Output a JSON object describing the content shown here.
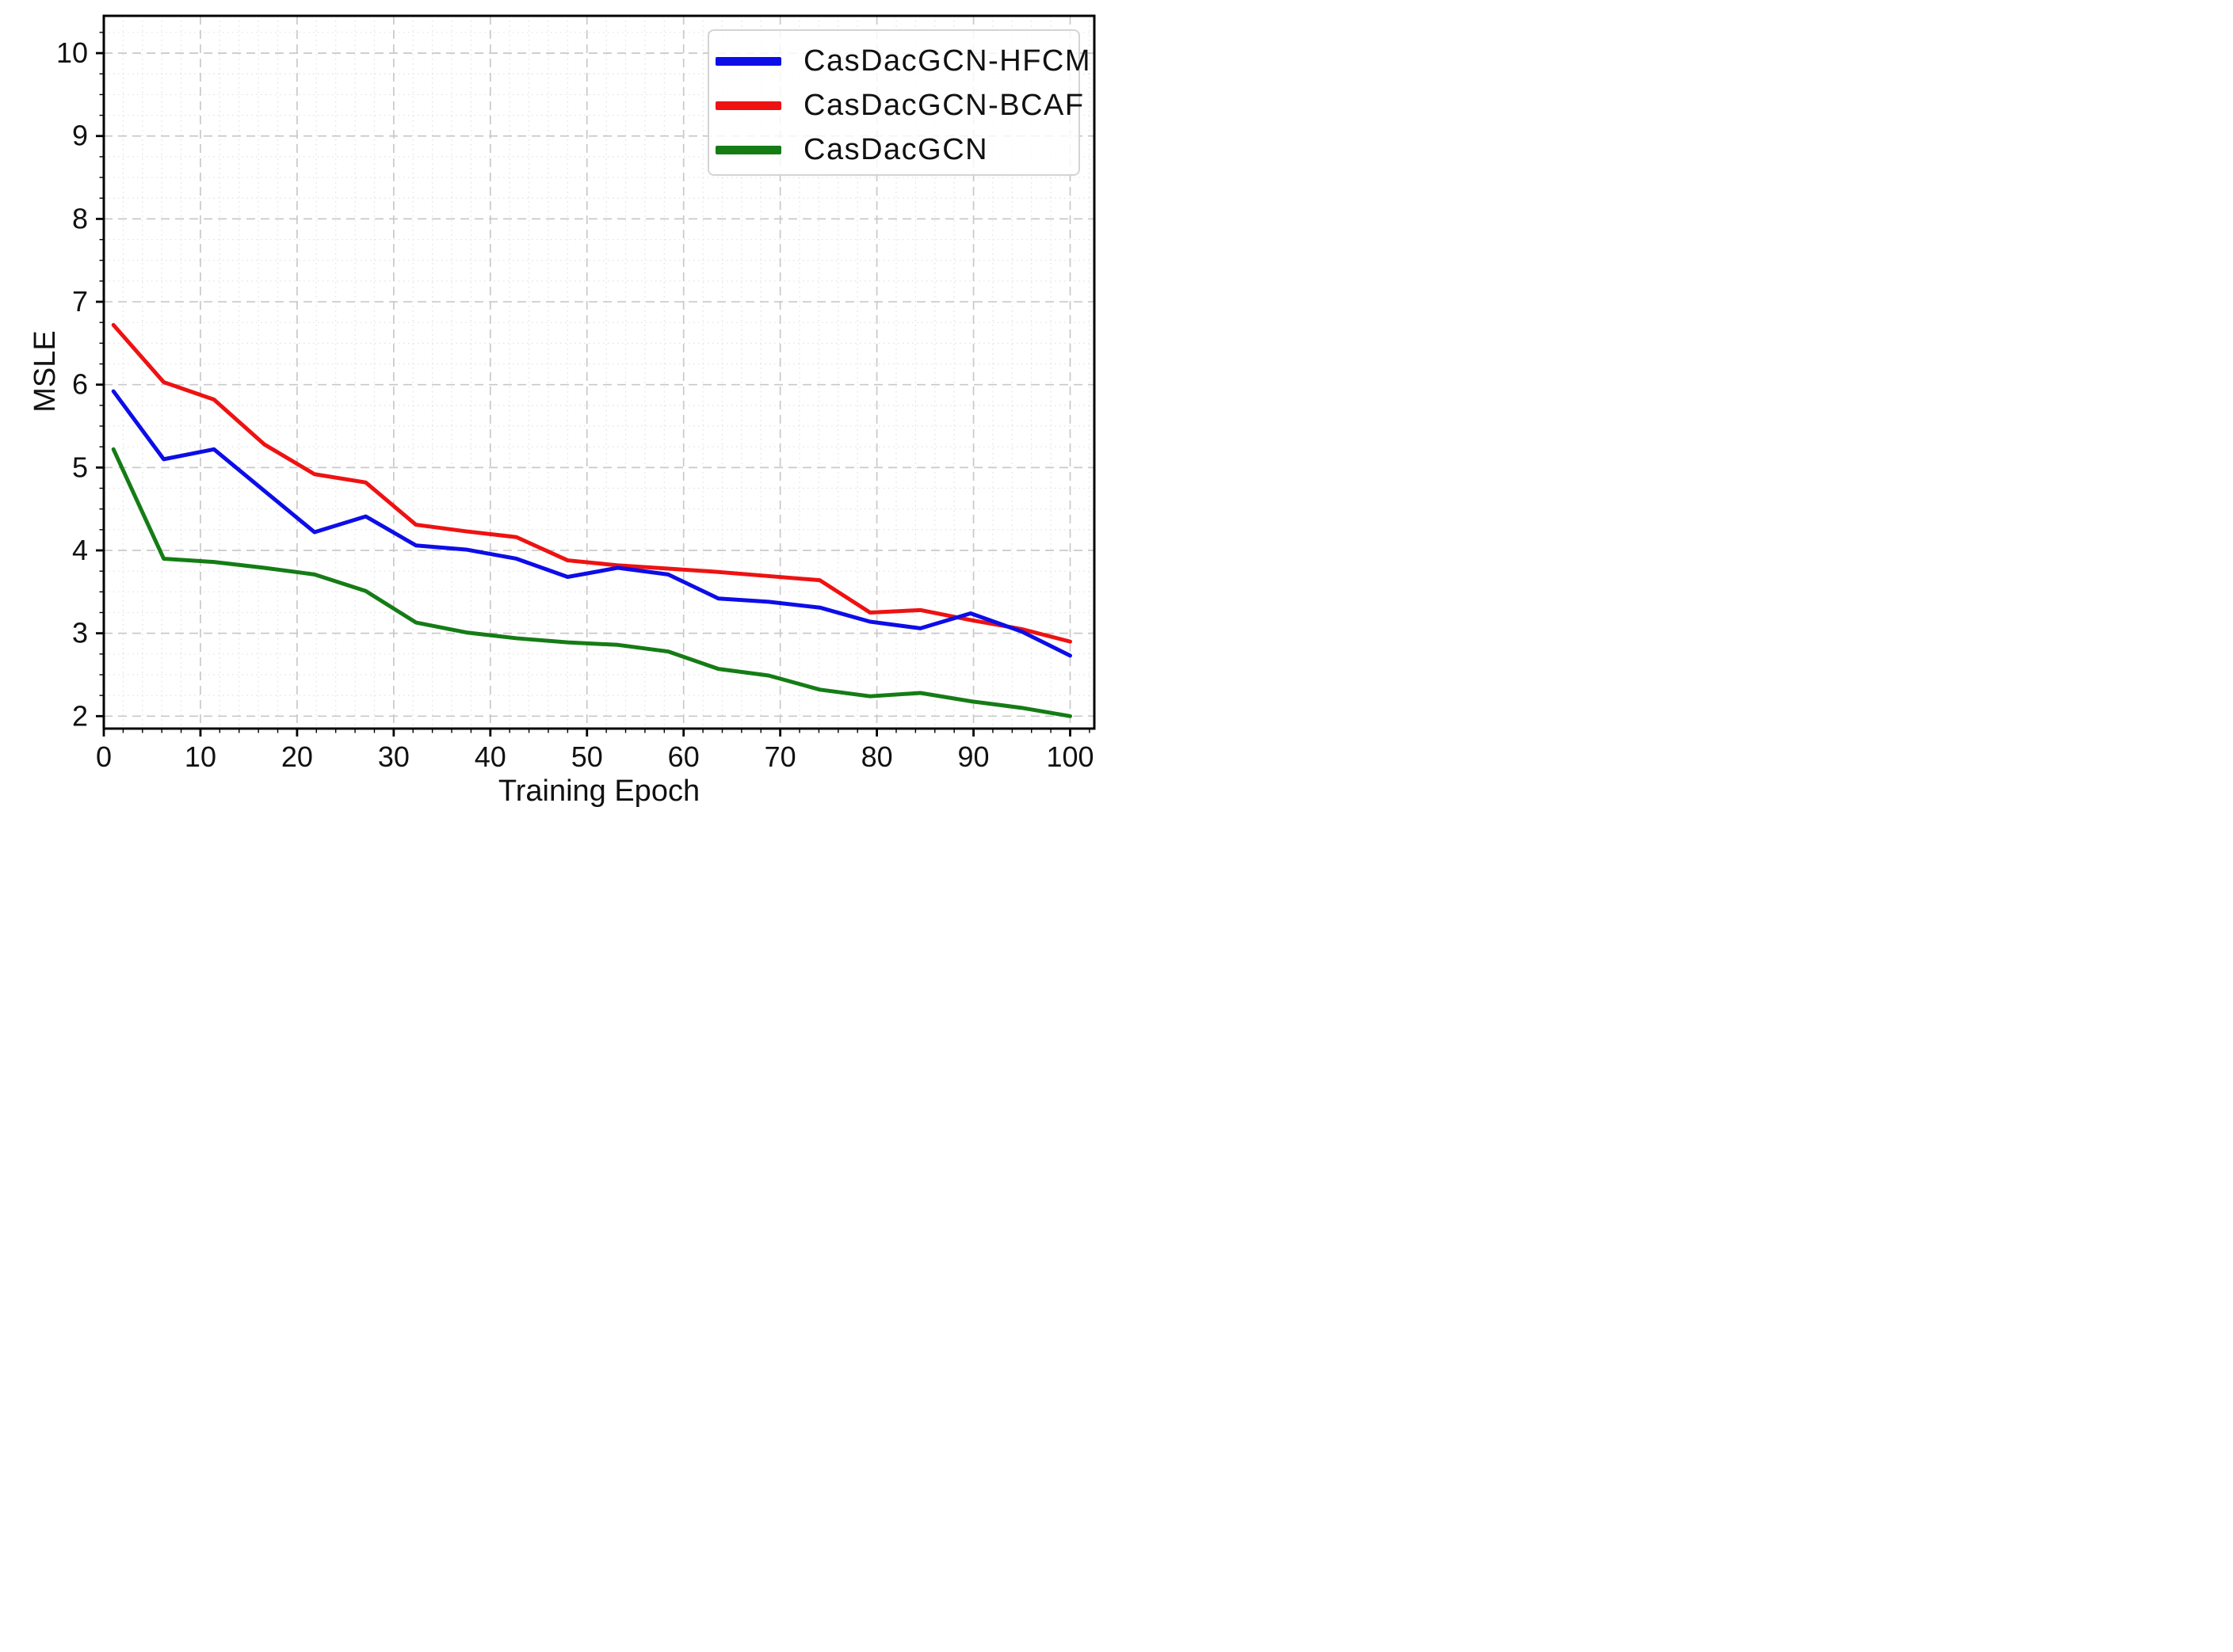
{
  "chart_data": {
    "type": "line",
    "title": "",
    "xlabel": "Training Epoch",
    "ylabel": "MSLE",
    "xlim": [
      0,
      102.5
    ],
    "ylim": [
      1.85,
      10.45
    ],
    "x_ticks": [
      0,
      10,
      20,
      30,
      40,
      50,
      60,
      70,
      80,
      90,
      100
    ],
    "y_ticks": [
      2,
      3,
      4,
      5,
      6,
      7,
      8,
      9,
      10
    ],
    "x_minor_step": 2,
    "y_minor_step": 0.25,
    "grid": {
      "major_color": "#c9c9c9",
      "minor_color": "#e3e3e3",
      "major_dash": "11 7",
      "minor_dash": "1.6 4.4"
    },
    "axis_color": "#000000",
    "legend_position": "upper-right",
    "x": [
      1,
      6.2,
      11.4,
      16.6,
      21.8,
      27.1,
      32.3,
      37.5,
      42.7,
      48,
      53.2,
      58.4,
      63.6,
      68.8,
      74.1,
      79.3,
      84.5,
      89.7,
      95,
      100
    ],
    "series": [
      {
        "name": "CasDacGCN-HFCM",
        "color": "#0d0de8",
        "values": [
          5.92,
          5.1,
          5.22,
          4.72,
          4.22,
          4.41,
          4.06,
          4.01,
          3.9,
          3.68,
          3.79,
          3.71,
          3.42,
          3.38,
          3.31,
          3.14,
          3.06,
          3.24,
          3.02,
          2.73
        ]
      },
      {
        "name": "CasDacGCN-BCAF",
        "color": "#ee1212",
        "values": [
          6.72,
          6.03,
          5.82,
          5.28,
          4.92,
          4.82,
          4.31,
          4.23,
          4.16,
          3.88,
          3.82,
          3.78,
          3.74,
          3.69,
          3.64,
          3.25,
          3.28,
          3.16,
          3.05,
          2.9
        ]
      },
      {
        "name": "CasDacGCN",
        "color": "#157c15",
        "values": [
          5.22,
          3.9,
          3.86,
          3.79,
          3.71,
          3.51,
          3.13,
          3.01,
          2.94,
          2.89,
          2.86,
          2.78,
          2.57,
          2.49,
          2.32,
          2.24,
          2.28,
          2.18,
          2.1,
          2.0
        ]
      }
    ],
    "draw_order": [
      "CasDacGCN-BCAF",
      "CasDacGCN",
      "CasDacGCN-HFCM"
    ]
  }
}
